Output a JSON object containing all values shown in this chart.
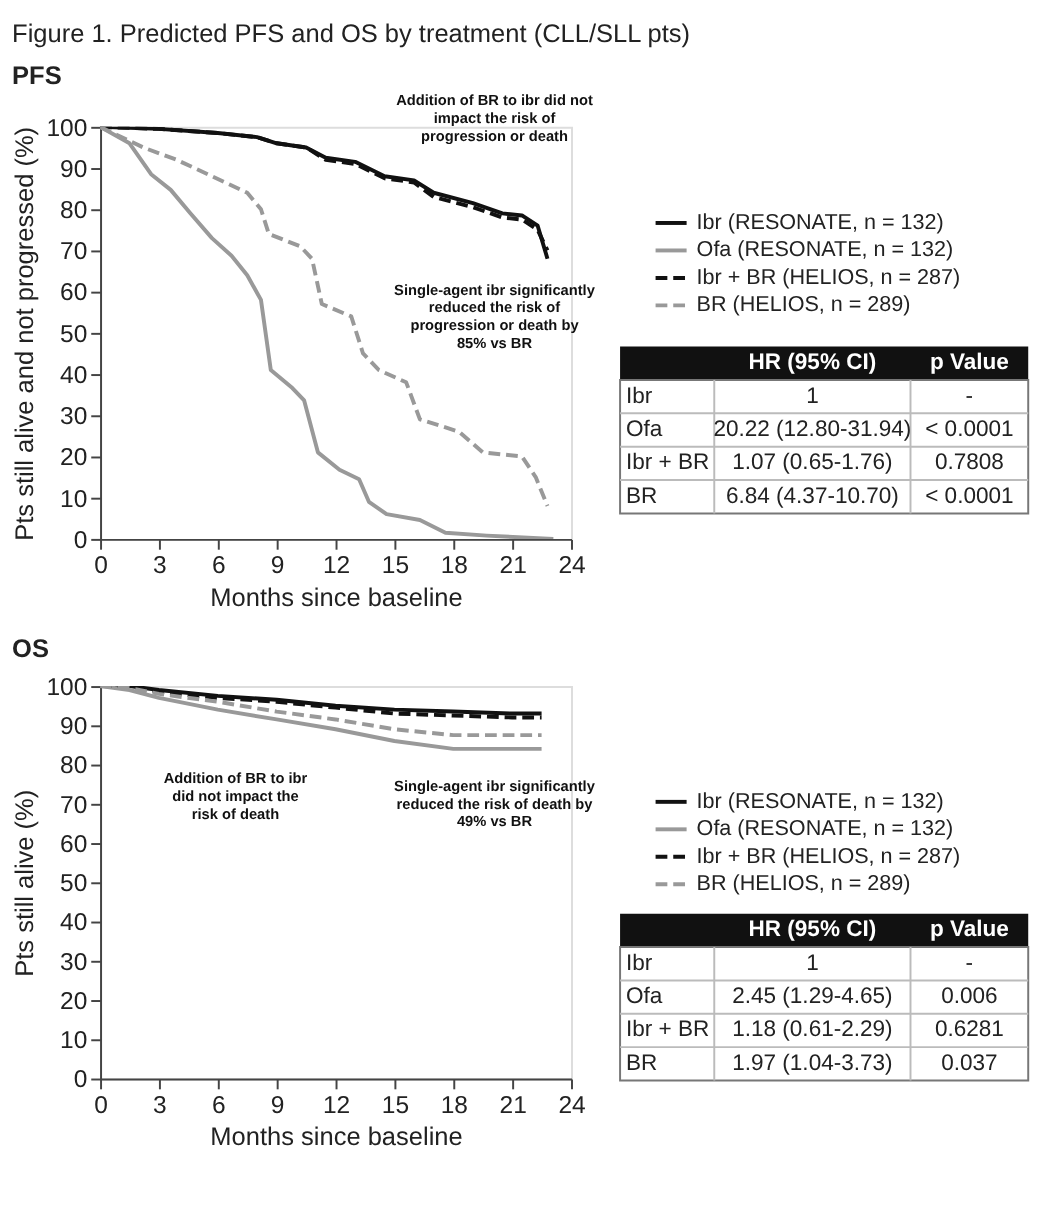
{
  "chart_data": [
    {
      "type": "line",
      "title": "Figure 1. Predicted PFS and OS by treatment (CLL/SLL pts)",
      "subtitle": "PFS",
      "xlabel": "Months since baseline",
      "ylabel": "Pts still alive and not progressed (%)",
      "xlim": [
        0,
        24
      ],
      "xticks": [
        0,
        3,
        6,
        9,
        12,
        15,
        18,
        21,
        24
      ],
      "ylim": [
        0,
        100
      ],
      "yticks": [
        0,
        10,
        20,
        30,
        40,
        50,
        60,
        70,
        80,
        90,
        100
      ],
      "grid": false,
      "legend": "right",
      "series": [
        {
          "name": "Ibr (RESONATE, n = 132)",
          "color": "#111111",
          "line_style": "solid",
          "x": [
            0,
            3,
            6,
            8,
            9,
            10.5,
            11.5,
            13,
            14.5,
            16,
            17,
            19,
            20.5,
            21.5,
            22.3,
            22.8
          ],
          "values": [
            100,
            99.5,
            98.5,
            97.5,
            96,
            95,
            92.5,
            91.5,
            88,
            87,
            84,
            81.5,
            79,
            78.5,
            76,
            68
          ]
        },
        {
          "name": "Ofa (RESONATE, n = 132)",
          "color": "#999999",
          "line_style": "solid",
          "x": [
            0,
            1.5,
            2.6,
            3.6,
            4.6,
            5.7,
            6.7,
            7.5,
            8.2,
            8.7,
            9.8,
            10.4,
            11.1,
            12.2,
            13.2,
            13.7,
            14.6,
            16.3,
            17.6,
            19.7,
            23.1
          ],
          "values": [
            100,
            96,
            88.5,
            84.7,
            79,
            73,
            68.7,
            64,
            58,
            41,
            36.6,
            33.6,
            21,
            16.8,
            14.5,
            9,
            6,
            4.6,
            1.5,
            0.8,
            0
          ]
        },
        {
          "name": "Ibr + BR (HELIOS, n = 287)",
          "color": "#111111",
          "line_style": "dashed",
          "x": [
            0,
            3,
            6,
            8,
            9,
            10.5,
            11.5,
            13,
            14.5,
            16,
            17,
            19,
            20.5,
            21.5,
            22.3,
            22.8
          ],
          "values": [
            100,
            99.5,
            98.5,
            97.5,
            96,
            95,
            92,
            91,
            87.5,
            86.5,
            83,
            80.5,
            78,
            77.5,
            75,
            70
          ]
        },
        {
          "name": "BR (HELIOS, n = 289)",
          "color": "#999999",
          "line_style": "dashed",
          "x": [
            0,
            2.2,
            3.9,
            5.7,
            7.5,
            8.2,
            8.6,
            10.2,
            10.8,
            11.3,
            12.8,
            13.4,
            14.2,
            15.6,
            16.3,
            18.3,
            19.5,
            21.5,
            22.2,
            22.8
          ],
          "values": [
            100,
            95,
            92,
            88,
            84,
            80,
            74,
            71,
            68,
            57,
            54,
            45,
            41,
            38,
            29,
            26,
            21,
            20,
            15,
            8
          ]
        }
      ],
      "annotations": [
        "Addition of BR to ibr did not\nimpact the risk of\nprogression or death",
        "Single-agent ibr significantly\nreduced the risk of\nprogression or death by\n85% vs BR",
        "HR (95% CI)",
        "p Value",
        "Ibr",
        "1",
        "-",
        "Ofa",
        "20.22 (12.80-31.94)",
        "< 0.0001",
        "Ibr + BR",
        "1.07 (0.65-1.76)",
        "0.7808",
        "BR",
        "6.84 (4.37-10.70)",
        "< 0.0001"
      ]
    },
    {
      "type": "line",
      "title": "OS",
      "xlabel": "Months since baseline",
      "ylabel": "Pts still alive (%)",
      "xlim": [
        0,
        24
      ],
      "xticks": [
        0,
        3,
        6,
        9,
        12,
        15,
        18,
        21,
        24
      ],
      "ylim": [
        0,
        100
      ],
      "yticks": [
        0,
        10,
        20,
        30,
        40,
        50,
        60,
        70,
        80,
        90,
        100
      ],
      "grid": false,
      "legend": "right",
      "series": [
        {
          "name": "Ibr (RESONATE, n = 132)",
          "color": "#111111",
          "line_style": "solid",
          "x": [
            0,
            1.5,
            3,
            6,
            9,
            12,
            15,
            18,
            21,
            22.5
          ],
          "values": [
            100,
            100,
            99,
            97.5,
            96.5,
            95,
            94,
            93.5,
            93,
            93
          ]
        },
        {
          "name": "Ofa (RESONATE, n = 132)",
          "color": "#999999",
          "line_style": "solid",
          "x": [
            0,
            1.5,
            3,
            6,
            9,
            12,
            15,
            18,
            22.5
          ],
          "values": [
            100,
            99,
            97,
            94,
            91.5,
            89,
            86,
            84,
            84
          ]
        },
        {
          "name": "Ibr + BR (HELIOS, n = 287)",
          "color": "#111111",
          "line_style": "dashed",
          "x": [
            0,
            1.5,
            3,
            6,
            9,
            12,
            15,
            18,
            21,
            22.5
          ],
          "values": [
            100,
            100,
            98.5,
            97,
            96,
            94.5,
            93,
            92.5,
            92,
            92
          ]
        },
        {
          "name": "BR (HELIOS, n = 289)",
          "color": "#999999",
          "line_style": "dashed",
          "x": [
            0,
            1.5,
            3,
            6,
            9,
            12,
            15,
            18,
            22.5
          ],
          "values": [
            100,
            99.5,
            98,
            96,
            93.5,
            91.5,
            89,
            87.5,
            87.5
          ]
        }
      ],
      "annotations": [
        "Addition of BR to ibr\ndid not impact the\nrisk of death",
        "Single-agent ibr significantly\nreduced the risk of death by\n49% vs BR",
        "HR (95% CI)",
        "p Value",
        "Ibr",
        "1",
        "-",
        "Ofa",
        "2.45 (1.29-4.65)",
        "0.006",
        "Ibr + BR",
        "1.18 (0.61-2.29)",
        "0.6281",
        "BR",
        "1.97 (1.04-3.73)",
        "0.037"
      ]
    }
  ]
}
